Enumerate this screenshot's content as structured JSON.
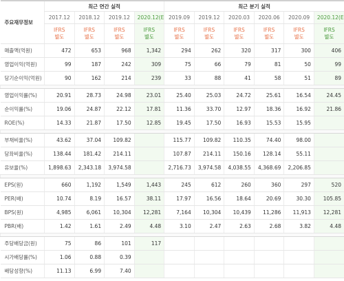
{
  "table": {
    "title": "주요재무정보",
    "groups": [
      {
        "label": "최근 연간 실적",
        "columns": [
          {
            "period": "2017.12",
            "basis": "IFRS 별도"
          },
          {
            "period": "2018.12",
            "basis": "IFRS 별도"
          },
          {
            "period": "2019.12",
            "basis": "IFRS 별도"
          },
          {
            "period": "2020.12(E)",
            "basis": "IFRS 별도",
            "estimate": true
          }
        ]
      },
      {
        "label": "최근 분기 실적",
        "columns": [
          {
            "period": "2019.09",
            "basis": "IFRS 별도"
          },
          {
            "period": "2019.12",
            "basis": "IFRS 별도"
          },
          {
            "period": "2020.03",
            "basis": "IFRS 별도"
          },
          {
            "period": "2020.06",
            "basis": "IFRS 별도"
          },
          {
            "period": "2020.09",
            "basis": "IFRS 별도"
          },
          {
            "period": "2020.12(E)",
            "basis": "IFRS 별도",
            "estimate": true
          }
        ]
      }
    ],
    "sections": [
      [
        {
          "label": "매출액(억원)",
          "values": [
            "472",
            "653",
            "968",
            "1,342",
            "294",
            "262",
            "320",
            "317",
            "300",
            "406"
          ]
        },
        {
          "label": "영업이익(억원)",
          "values": [
            "99",
            "187",
            "242",
            "309",
            "75",
            "66",
            "79",
            "81",
            "50",
            "99"
          ]
        },
        {
          "label": "당기순이익(억원)",
          "values": [
            "90",
            "162",
            "214",
            "239",
            "33",
            "88",
            "41",
            "58",
            "51",
            "89"
          ]
        }
      ],
      [
        {
          "label": "영업이익률(%)",
          "values": [
            "20.91",
            "28.73",
            "24.98",
            "23.01",
            "25.40",
            "25.03",
            "24.72",
            "25.61",
            "16.54",
            "24.45"
          ]
        },
        {
          "label": "순이익률(%)",
          "values": [
            "19.06",
            "24.87",
            "22.12",
            "17.81",
            "11.36",
            "33.70",
            "12.97",
            "18.36",
            "16.92",
            "21.86"
          ]
        },
        {
          "label": "ROE(%)",
          "values": [
            "14.33",
            "21.87",
            "17.50",
            "12.85",
            "19.45",
            "17.50",
            "16.93",
            "15.53",
            "15.95",
            null
          ]
        }
      ],
      [
        {
          "label": "부채비율(%)",
          "values": [
            "43.62",
            "37.04",
            "109.82",
            null,
            "115.77",
            "109.82",
            "110.35",
            "74.40",
            "98.00",
            null
          ]
        },
        {
          "label": "당좌비율(%)",
          "values": [
            "138.44",
            "181.42",
            "214.11",
            null,
            "107.87",
            "214.11",
            "150.16",
            "128.14",
            "55.11",
            null
          ]
        },
        {
          "label": "유보율(%)",
          "values": [
            "1,898.63",
            "2,343.18",
            "3,974.58",
            null,
            "2,716.73",
            "3,974.58",
            "4,038.55",
            "4,368.69",
            "2,206.85",
            null
          ]
        }
      ],
      [
        {
          "label": "EPS(원)",
          "values": [
            "660",
            "1,192",
            "1,549",
            "1,443",
            "245",
            "612",
            "260",
            "360",
            "297",
            "520"
          ]
        },
        {
          "label": "PER(배)",
          "values": [
            "10.74",
            "8.19",
            "16.57",
            "38.11",
            "17.97",
            "16.56",
            "18.64",
            "20.69",
            "30.30",
            "105.85"
          ]
        },
        {
          "label": "BPS(원)",
          "values": [
            "4,985",
            "6,061",
            "10,304",
            "12,281",
            "7,164",
            "10,304",
            "10,439",
            "11,286",
            "11,913",
            "12,281"
          ]
        },
        {
          "label": "PBR(배)",
          "values": [
            "1.42",
            "1.61",
            "2.49",
            "4.48",
            "3.10",
            "2.47",
            "2.63",
            "2.68",
            "3.82",
            "4.48"
          ]
        }
      ],
      [
        {
          "label": "주당배당금(원)",
          "values": [
            "75",
            "86",
            "101",
            "117",
            null,
            null,
            null,
            null,
            null,
            null
          ]
        },
        {
          "label": "시가배당률(%)",
          "values": [
            "1.06",
            "0.88",
            "0.39",
            null,
            null,
            null,
            null,
            null,
            null,
            null
          ]
        },
        {
          "label": "배당성향(%)",
          "values": [
            "11.13",
            "6.99",
            "7.40",
            null,
            null,
            null,
            null,
            null,
            null,
            null
          ]
        }
      ]
    ]
  }
}
